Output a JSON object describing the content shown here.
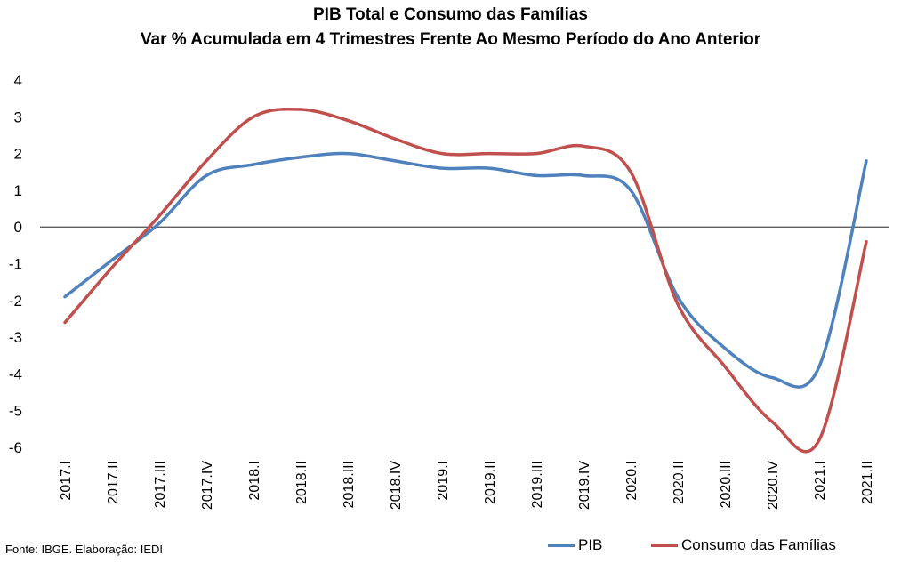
{
  "title_line1": "PIB Total e Consumo das Famílias",
  "title_line2": "Var % Acumulada em 4 Trimestres Frente Ao Mesmo Período do Ano Anterior",
  "source": "Fonte: IBGE. Elaboração: IEDI",
  "chart_data": {
    "type": "line",
    "title": "PIB Total e Consumo das Famílias — Var % Acumulada em 4 Trimestres Frente Ao Mesmo Período do Ano Anterior",
    "categories": [
      "2017.I",
      "2017.II",
      "2017.III",
      "2017.IV",
      "2018.I",
      "2018.II",
      "2018.III",
      "2018.IV",
      "2019.I",
      "2019.II",
      "2019.III",
      "2019.IV",
      "2020.I",
      "2020.II",
      "2020.III",
      "2020.IV",
      "2021.I",
      "2021.II"
    ],
    "ylim": [
      -6,
      4
    ],
    "yticks": [
      4,
      3,
      2,
      1,
      0,
      -1,
      -2,
      -3,
      -4,
      -5,
      -6
    ],
    "grid": false,
    "legend_position": "bottom",
    "series": [
      {
        "name": "PIB",
        "color": "#4F81BD",
        "values": [
          -1.9,
          -0.9,
          0.1,
          1.4,
          1.7,
          1.9,
          2.0,
          1.8,
          1.6,
          1.6,
          1.4,
          1.4,
          1.0,
          -1.9,
          -3.3,
          -4.1,
          -3.8,
          1.8
        ]
      },
      {
        "name": "Consumo das Famílias",
        "color": "#C0504D",
        "values": [
          -2.6,
          -1.1,
          0.3,
          1.8,
          3.0,
          3.2,
          2.9,
          2.4,
          2.0,
          2.0,
          2.0,
          2.2,
          1.5,
          -2.1,
          -3.8,
          -5.3,
          -5.8,
          -0.4
        ]
      }
    ]
  }
}
